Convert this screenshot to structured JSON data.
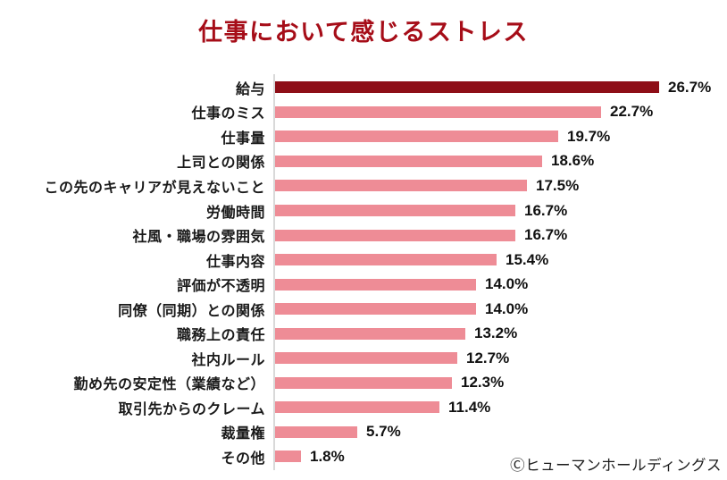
{
  "chart_data": {
    "type": "bar",
    "orientation": "horizontal",
    "title": "仕事において感じるストレス",
    "categories": [
      "給与",
      "仕事のミス",
      "仕事量",
      "上司との関係",
      "この先のキャリアが見えないこと",
      "労働時間",
      "社風・職場の雰囲気",
      "仕事内容",
      "評価が不透明",
      "同僚（同期）との関係",
      "職務上の責任",
      "社内ルール",
      "勤め先の安定性（業績など）",
      "取引先からのクレーム",
      "裁量権",
      "その他"
    ],
    "values": [
      26.7,
      22.7,
      19.7,
      18.6,
      17.5,
      16.7,
      16.7,
      15.4,
      14.0,
      14.0,
      13.2,
      12.7,
      12.3,
      11.4,
      5.7,
      1.8
    ],
    "value_labels": [
      "26.7%",
      "22.7%",
      "19.7%",
      "18.6%",
      "17.5%",
      "16.7%",
      "16.7%",
      "15.4%",
      "14.0%",
      "14.0%",
      "13.2%",
      "12.7%",
      "12.3%",
      "11.4%",
      "5.7%",
      "1.8%"
    ],
    "highlight_index": 0,
    "xlim": [
      0,
      27
    ],
    "grid": false,
    "legend": false,
    "colors": {
      "title": "#a60d18",
      "highlight_bar": "#8e0e17",
      "bar": "#ee8c96",
      "axis_line": "#d9d9d9",
      "label_text": "#1a1a1a"
    }
  },
  "credit": "Ⓒヒューマンホールディングス"
}
